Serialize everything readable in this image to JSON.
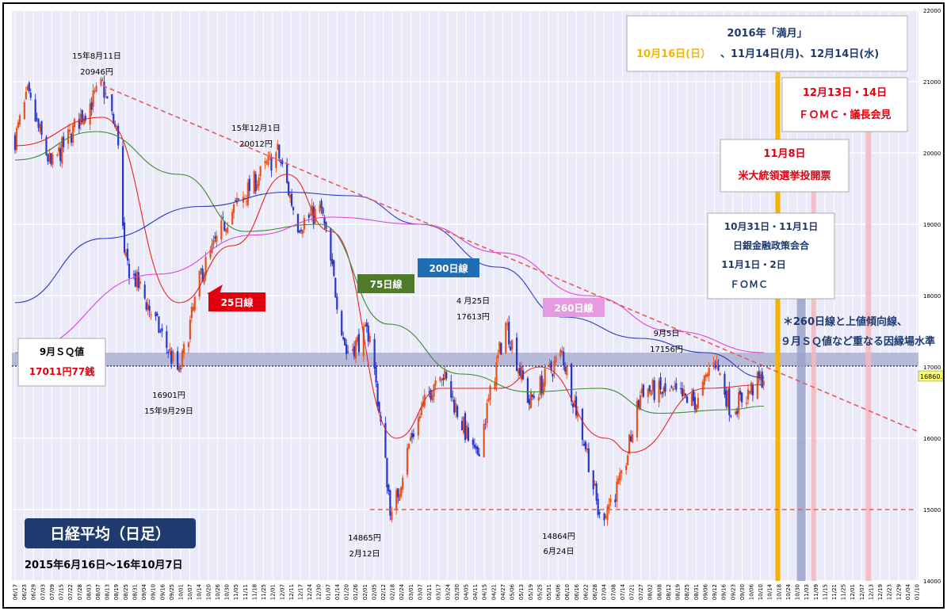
{
  "chart_data": {
    "type": "line",
    "title": "日経平均（日足）",
    "subtitle": "2015年6月16日～16年10月7日",
    "ylim": [
      14000,
      22000
    ],
    "y_ticks": [
      14000,
      15000,
      16000,
      17000,
      18000,
      19000,
      20000,
      21000,
      22000
    ],
    "last_price": "16860.",
    "x_tick_labels": [
      "06/17",
      "06/23",
      "06/29",
      "07/03",
      "07/09",
      "07/15",
      "07/22",
      "07/28",
      "08/03",
      "08/07",
      "08/13",
      "08/19",
      "08/25",
      "08/31",
      "09/04",
      "09/10",
      "09/16",
      "09/25",
      "10/01",
      "10/07",
      "10/14",
      "10/20",
      "10/26",
      "10/30",
      "11/05",
      "11/11",
      "11/18",
      "11/25",
      "12/01",
      "12/07",
      "12/11",
      "12/17",
      "12/24",
      "12/30",
      "01/07",
      "01/14",
      "01/20",
      "01/26",
      "02/01",
      "02/05",
      "02/12",
      "02/18",
      "02/24",
      "03/01",
      "03/07",
      "03/11",
      "03/17",
      "03/24",
      "03/30",
      "04/05",
      "04/11",
      "04/15",
      "04/21",
      "04/27",
      "05/06",
      "05/13",
      "05/19",
      "05/25",
      "05/31",
      "06/06",
      "06/10",
      "06/16",
      "06/22",
      "06/28",
      "07/04",
      "07/08",
      "07/14",
      "07/21",
      "07/27",
      "08/02",
      "08/08",
      "08/12",
      "08/19",
      "08/25",
      "08/31",
      "09/06",
      "09/12",
      "09/16",
      "09/23",
      "09/30",
      "10/06",
      "10/10",
      "10/14",
      "10/18",
      "10/24",
      "10/30",
      "11/03",
      "11/09",
      "11/15",
      "11/21",
      "11/25",
      "12/01",
      "12/07",
      "12/13",
      "12/19",
      "12/23",
      "12/29",
      "01/04",
      "01/10"
    ],
    "price_path": {
      "dates": [
        "2015-06-16",
        "2015-06-24",
        "2015-07-09",
        "2015-07-28",
        "2015-08-11",
        "2015-08-21",
        "2015-08-25",
        "2015-09-04",
        "2015-09-29",
        "2015-10-13",
        "2015-10-30",
        "2015-12-01",
        "2015-12-14",
        "2015-12-29",
        "2016-01-14",
        "2016-01-29",
        "2016-02-12",
        "2016-02-24",
        "2016-03-14",
        "2016-04-06",
        "2016-04-25",
        "2016-05-10",
        "2016-05-31",
        "2016-06-16",
        "2016-06-24",
        "2016-07-08",
        "2016-07-21",
        "2016-08-12",
        "2016-08-26",
        "2016-09-05",
        "2016-09-16",
        "2016-10-07"
      ],
      "values": [
        20200,
        20800,
        19800,
        20500,
        20946,
        20200,
        18500,
        18100,
        16901,
        18300,
        19100,
        20012,
        19000,
        19200,
        17200,
        17500,
        14865,
        16000,
        17000,
        15700,
        17613,
        16500,
        17200,
        15800,
        14864,
        15400,
        16700,
        16600,
        16500,
        17156,
        16400,
        16860
      ]
    },
    "moving_averages": [
      {
        "name": "25日線",
        "color": "#e8231c",
        "dates": [
          "2015-06-16",
          "2015-08-11",
          "2015-09-29",
          "2015-11-02",
          "2015-12-07",
          "2016-01-04",
          "2016-02-15",
          "2016-03-14",
          "2016-04-21",
          "2016-05-17",
          "2016-06-28",
          "2016-07-14",
          "2016-08-31",
          "2016-10-07"
        ],
        "values": [
          20100,
          20500,
          17900,
          18700,
          19700,
          18900,
          16000,
          16700,
          16700,
          17000,
          16000,
          15800,
          16700,
          16750
        ]
      },
      {
        "name": "75日線",
        "color": "#3a8a2a",
        "dates": [
          "2015-06-16",
          "2015-08-07",
          "2015-09-29",
          "2015-11-10",
          "2015-12-28",
          "2016-02-10",
          "2016-03-28",
          "2016-05-10",
          "2016-06-24",
          "2016-08-01",
          "2016-09-15",
          "2016-10-07"
        ],
        "values": [
          19900,
          20300,
          19700,
          18900,
          19000,
          17600,
          16900,
          16650,
          16700,
          16350,
          16400,
          16450
        ]
      },
      {
        "name": "200日線",
        "color": "#2a36c8",
        "dates": [
          "2015-06-16",
          "2015-08-11",
          "2015-10-13",
          "2015-12-07",
          "2016-01-18",
          "2016-03-01",
          "2016-04-20",
          "2016-06-01",
          "2016-07-20",
          "2016-08-31",
          "2016-10-07"
        ],
        "values": [
          17900,
          18800,
          19250,
          19450,
          19400,
          19000,
          18400,
          17700,
          17400,
          17200,
          16850
        ]
      },
      {
        "name": "260日線",
        "color": "#e040d8",
        "dates": [
          "2015-06-16",
          "2015-09-15",
          "2015-11-16",
          "2016-01-04",
          "2016-03-01",
          "2016-04-22",
          "2016-06-16",
          "2016-08-10",
          "2016-10-07"
        ],
        "values": [
          17200,
          18300,
          18850,
          19100,
          19000,
          18600,
          18000,
          17500,
          17200
        ]
      }
    ],
    "trend_lines": [
      {
        "style": "dashed",
        "color": "#e85a5a",
        "dates": [
          "2015-08-11",
          "2017-01-13"
        ],
        "values": [
          20946,
          16100
        ]
      },
      {
        "style": "dashed",
        "color": "#e85a5a",
        "dates": [
          "2016-01-29",
          "2017-01-13"
        ],
        "values": [
          15000,
          15000
        ]
      }
    ],
    "sq_level": 17011.77,
    "vertical_markers": [
      {
        "date": "2016-10-16",
        "color": "#f5b400"
      },
      {
        "date": "2016-10-31",
        "color": "#9aa2cc"
      },
      {
        "date": "2016-11-08",
        "color": "#f4b6c0"
      },
      {
        "date": "2016-12-13",
        "color": "#f4b6c0"
      }
    ],
    "annotations": {
      "high_1_date": "15年8月11日",
      "high_1_value": "20946円",
      "high_2_date": "15年12月1日",
      "high_2_value": "20012円",
      "low_1_value": "16901円",
      "low_1_date": "15年9月29日",
      "low_2_value": "14865円",
      "low_2_date": "2月12日",
      "peak_3_date": "4 月25日",
      "peak_3_value": "17613円",
      "low_3_value": "14864円",
      "low_3_date": "6月24日",
      "peak_4_date": "9月5日",
      "peak_4_value": "17156円"
    },
    "sq_box": {
      "label": "9月ＳＱ値",
      "value": "17011円77銭"
    },
    "event_boxes": {
      "fullmoon_title": "2016年「満月」",
      "fullmoon_date_1": "10月16日(日）",
      "fullmoon_rest": "、11月14日(月)、12月14日(水)",
      "fomc_dec_date": "12月13日・14日",
      "fomc_dec_label": "ＦＯＭＣ・議長会見",
      "election_date": "11月8日",
      "election_label": "米大統領選挙投開票",
      "boj_date": "10月31日・11月1日",
      "boj_label": "日銀金融政策会合",
      "fomc_nov_date": "11月1日・2日",
      "fomc_nov_label": "ＦＯＭＣ"
    },
    "right_note_1": "＊260日線と上値傾向線、",
    "right_note_2": "９月ＳＱ値など重なる因縁場水準",
    "ma_labels": {
      "ma25": "25日線",
      "ma75": "75日線",
      "ma200": "200日線",
      "ma260": "260日線"
    },
    "colors": {
      "background": "#eaeaf9",
      "grid": "#ffffff",
      "up": "#e8531c",
      "down": "#2a36c8",
      "title_box": "#1f3a6e",
      "label_75": "#4f7a2a",
      "label_200": "#1f6db5",
      "label_260": "#e69ae0",
      "label_25": "#e00010"
    }
  }
}
